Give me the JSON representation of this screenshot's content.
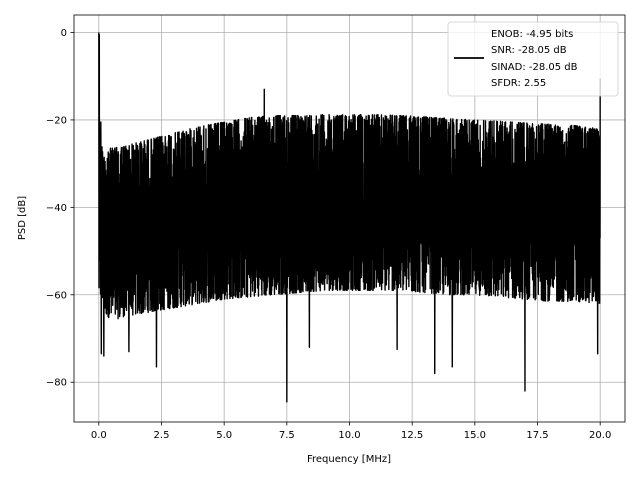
{
  "chart_data": {
    "type": "line",
    "title": "",
    "xlabel": "Frequency [MHz]",
    "ylabel": "PSD [dB]",
    "xlim": [
      -0.99,
      20.99
    ],
    "ylim": [
      -89.1,
      4.0
    ],
    "xticks": [
      {
        "value": 0.0,
        "label": "0.0"
      },
      {
        "value": 2.5,
        "label": "2.5"
      },
      {
        "value": 5.0,
        "label": "5.0"
      },
      {
        "value": 7.5,
        "label": "7.5"
      },
      {
        "value": 10.0,
        "label": "10.0"
      },
      {
        "value": 12.5,
        "label": "12.5"
      },
      {
        "value": 15.0,
        "label": "15.0"
      },
      {
        "value": 17.5,
        "label": "17.5"
      },
      {
        "value": 20.0,
        "label": "20.0"
      }
    ],
    "yticks": [
      {
        "value": 0,
        "label": "0"
      },
      {
        "value": -20,
        "label": "−20"
      },
      {
        "value": -40,
        "label": "−40"
      },
      {
        "value": -60,
        "label": "−60"
      },
      {
        "value": -80,
        "label": "−80"
      }
    ],
    "grid": true,
    "legend": {
      "placement": "top-right",
      "entries": [
        "ENOB: -4.95 bits",
        "SNR: -28.05 dB",
        "SINAD: -28.05 dB",
        "SFDR: 2.55"
      ]
    },
    "series": [
      {
        "color": "#000000",
        "envelope": {
          "x": [
            0.0,
            0.1,
            0.5,
            1.0,
            2.0,
            3.0,
            4.0,
            5.0,
            6.0,
            7.0,
            8.0,
            9.0,
            10.0,
            11.0,
            12.0,
            13.0,
            14.0,
            15.0,
            16.0,
            17.0,
            18.0,
            19.0,
            20.0
          ],
          "upper": [
            -25.0,
            -26.0,
            -26.5,
            -26.0,
            -24.5,
            -23.0,
            -21.5,
            -20.5,
            -19.5,
            -19.0,
            -19.0,
            -18.8,
            -18.8,
            -18.8,
            -19.0,
            -19.3,
            -19.7,
            -20.0,
            -20.3,
            -20.7,
            -21.0,
            -21.3,
            -22.0
          ],
          "lower": [
            -60.0,
            -63.0,
            -66.0,
            -65.0,
            -64.0,
            -63.0,
            -62.0,
            -61.0,
            -60.5,
            -60.0,
            -59.5,
            -59.0,
            -59.0,
            -59.0,
            -59.0,
            -59.5,
            -60.0,
            -60.0,
            -60.5,
            -61.0,
            -61.5,
            -61.5,
            -62.0
          ]
        },
        "peaks": [
          {
            "x": 0.0,
            "y": 0.0
          },
          {
            "x": 0.02,
            "y": -0.5
          },
          {
            "x": 0.08,
            "y": -20.5
          },
          {
            "x": 6.6,
            "y": -13.0
          },
          {
            "x": 20.0,
            "y": -10.5
          }
        ],
        "dips": [
          {
            "x": 0.1,
            "y": -73.5
          },
          {
            "x": 0.2,
            "y": -74.0
          },
          {
            "x": 1.2,
            "y": -73.0
          },
          {
            "x": 2.3,
            "y": -76.5
          },
          {
            "x": 7.5,
            "y": -84.5
          },
          {
            "x": 8.4,
            "y": -72.0
          },
          {
            "x": 11.9,
            "y": -72.5
          },
          {
            "x": 13.4,
            "y": -78.0
          },
          {
            "x": 14.1,
            "y": -76.5
          },
          {
            "x": 17.0,
            "y": -82.0
          },
          {
            "x": 19.9,
            "y": -73.5
          }
        ]
      }
    ]
  }
}
